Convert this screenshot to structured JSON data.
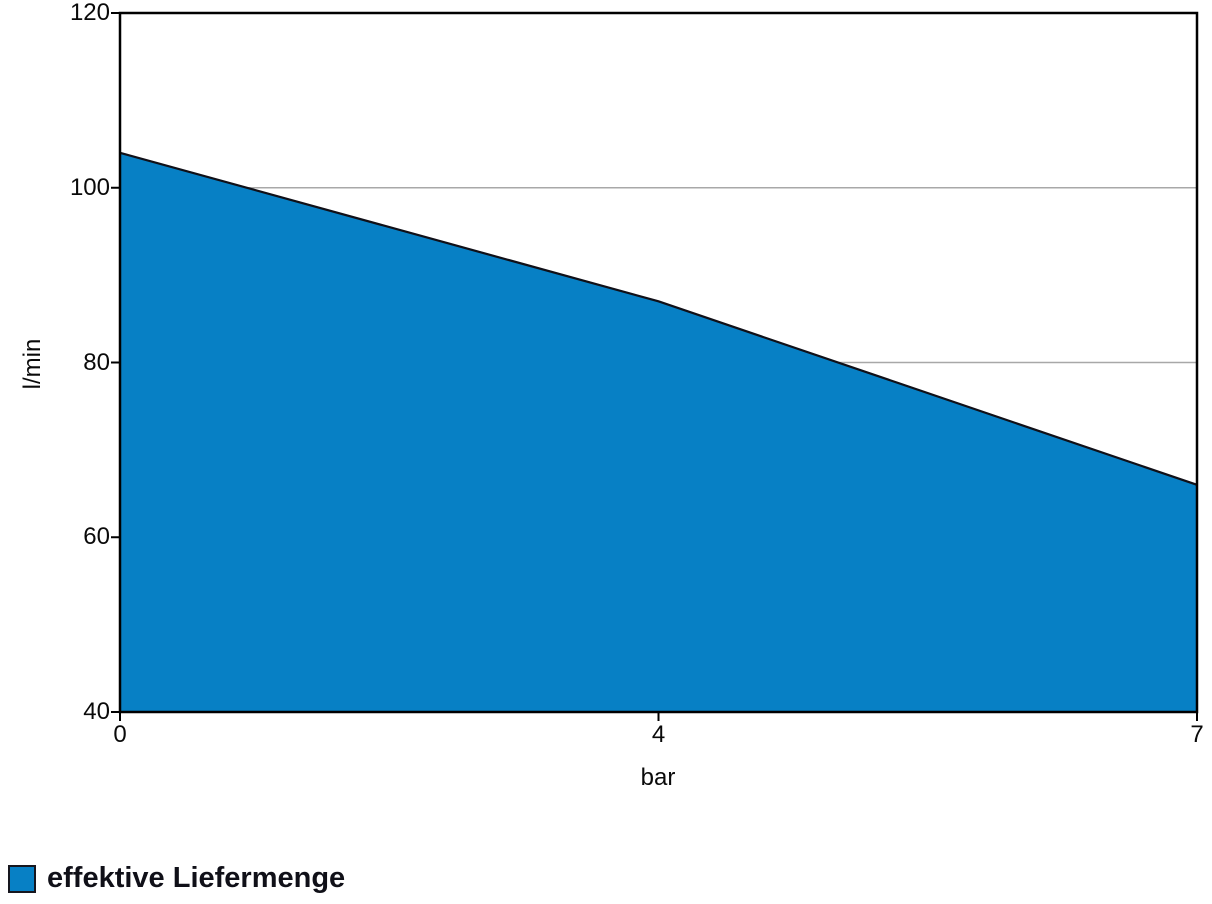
{
  "chart_data": {
    "type": "area",
    "title": "",
    "xlabel": "bar",
    "ylabel": "l/min",
    "x": [
      0,
      4,
      7
    ],
    "x_tick_labels": [
      "0",
      "4",
      "7"
    ],
    "x_axis_note": "ticks evenly spaced (category-style axis)",
    "y_ticks": [
      120,
      100,
      80,
      60,
      40
    ],
    "ylim": [
      40,
      120
    ],
    "grid": "horizontal gridlines at interior ticks, drawn beneath the filled area",
    "legend_position": "bottom-left",
    "series": [
      {
        "name": "effektive Liefermenge",
        "x_unit": "bar",
        "y_unit": "l/min",
        "values": [
          104,
          87,
          66
        ]
      }
    ],
    "colors": {
      "fill": "#0780C5",
      "line": "#101018",
      "grid": "#A8A8A8",
      "frame": "#000000",
      "tick": "#000000",
      "text": "#0A0A0A"
    }
  }
}
